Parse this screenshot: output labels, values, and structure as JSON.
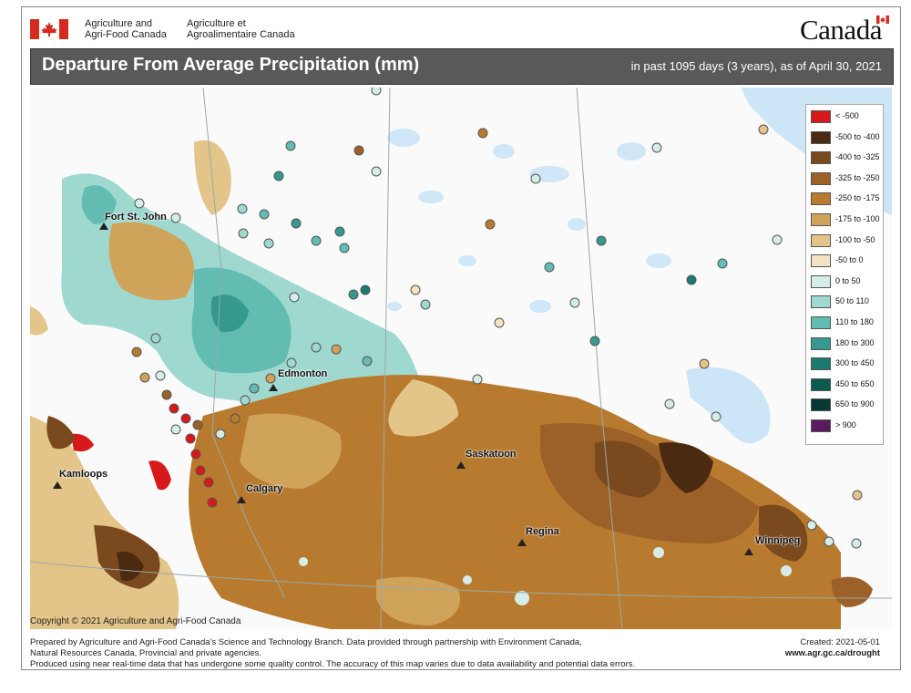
{
  "header": {
    "dept_en_line1": "Agriculture and",
    "dept_en_line2": "Agri-Food Canada",
    "dept_fr_line1": "Agriculture et",
    "dept_fr_line2": "Agroalimentaire Canada",
    "wordmark": "Canada"
  },
  "title": "Departure From Average Precipitation (mm)",
  "subtitle": "in past 1095 days (3 years), as of April 30, 2021",
  "legend": [
    {
      "label": "< -500",
      "color": "#d7191c"
    },
    {
      "label": "-500 to -400",
      "color": "#4a2a10"
    },
    {
      "label": "-400 to -325",
      "color": "#7a4a1e"
    },
    {
      "label": "-325 to -250",
      "color": "#9c6128"
    },
    {
      "label": "-250 to -175",
      "color": "#b87a2e"
    },
    {
      "label": "-175 to -100",
      "color": "#d0a35a"
    },
    {
      "label": "-100 to -50",
      "color": "#e3c58a"
    },
    {
      "label": "-50 to 0",
      "color": "#f3e3c3"
    },
    {
      "label": "0 to 50",
      "color": "#d5ece8"
    },
    {
      "label": "50 to 110",
      "color": "#9fd8cf"
    },
    {
      "label": "110 to 180",
      "color": "#62bcb1"
    },
    {
      "label": "180 to 300",
      "color": "#35998f"
    },
    {
      "label": "300 to 450",
      "color": "#1a7a70"
    },
    {
      "label": "450 to 650",
      "color": "#0a5a50"
    },
    {
      "label": "650 to 900",
      "color": "#043a33"
    },
    {
      "label": "> 900",
      "color": "#5a1a5e"
    }
  ],
  "cities": [
    {
      "name": "Fort St. John"
    },
    {
      "name": "Edmonton"
    },
    {
      "name": "Kamloops"
    },
    {
      "name": "Calgary"
    },
    {
      "name": "Saskatoon"
    },
    {
      "name": "Regina"
    },
    {
      "name": "Winnipeg"
    }
  ],
  "copyright": "Copyright © 2021 Agriculture and Agri-Food Canada",
  "footer": {
    "line1": "Prepared by Agriculture and Agri-Food Canada's Science and Technology Branch. Data provided through partnership with Environment Canada,",
    "line2": "Natural Resources Canada, Provincial and private agencies.",
    "line3": "Produced using near real-time data that has undergone some quality control. The accuracy of this map varies due to data availability and potential data errors.",
    "created": "Created: 2021-05-01",
    "url": "www.agr.gc.ca/drought"
  }
}
